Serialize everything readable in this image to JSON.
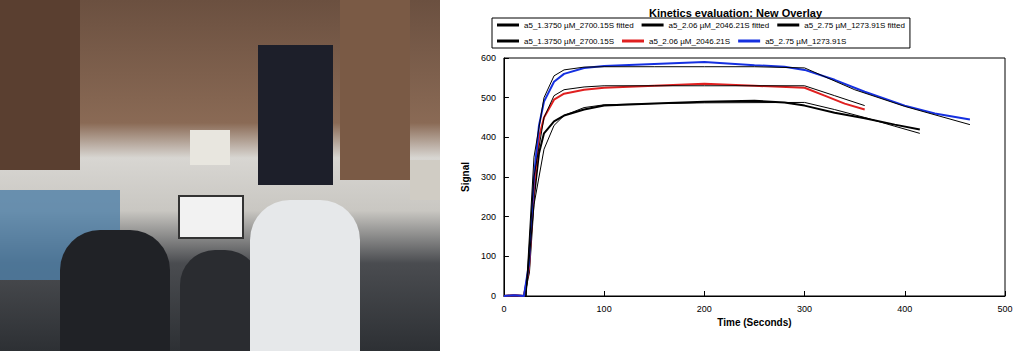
{
  "chart_data": {
    "type": "line",
    "title": "Kinetics evaluation: New Overlay",
    "x_label": "Time (Seconds)",
    "y_label": "Signal",
    "xlim": [
      0,
      500
    ],
    "xticks": [
      0,
      100,
      200,
      300,
      400,
      500
    ],
    "ylim": [
      0,
      600
    ],
    "yticks": [
      0,
      100,
      200,
      300,
      400,
      500,
      600
    ],
    "grid": false,
    "legend": "top",
    "series": [
      {
        "name": "a5_1.3750 µM_2700.15S fitted",
        "color": "#000000",
        "line_style": "thin",
        "x": [
          22,
          30,
          40,
          50,
          60,
          80,
          100,
          150,
          200,
          300,
          330,
          360,
          390,
          415
        ],
        "values": [
          0,
          230,
          370,
          430,
          455,
          475,
          482,
          485,
          487,
          488,
          470,
          450,
          428,
          410
        ]
      },
      {
        "name": "a5_2.06 µM_2046.21S fitted",
        "color": "#000000",
        "line_style": "thin",
        "x": [
          22,
          30,
          40,
          50,
          60,
          80,
          100,
          150,
          200,
          300,
          330,
          360
        ],
        "values": [
          0,
          300,
          450,
          505,
          520,
          527,
          530,
          530,
          530,
          530,
          505,
          480
        ]
      },
      {
        "name": "a5_2.75 µM_1273.91S fitted",
        "color": "#000000",
        "line_style": "thin",
        "x": [
          22,
          30,
          40,
          50,
          60,
          80,
          100,
          150,
          200,
          250,
          300,
          350,
          400,
          465
        ],
        "values": [
          0,
          350,
          500,
          555,
          570,
          577,
          578,
          578,
          578,
          578,
          575,
          520,
          478,
          432
        ]
      },
      {
        "name": "a5_1.3750 µM_2700.15S",
        "color": "#000000",
        "line_style": "thick",
        "x": [
          0,
          10,
          20,
          25,
          30,
          35,
          40,
          50,
          60,
          80,
          100,
          150,
          200,
          250,
          280,
          300,
          330,
          360,
          390,
          415
        ],
        "values": [
          0,
          2,
          0,
          60,
          250,
          360,
          410,
          440,
          455,
          470,
          480,
          485,
          490,
          492,
          488,
          480,
          462,
          448,
          432,
          420
        ]
      },
      {
        "name": "a5_2.06 µM_2046.21S",
        "color": "#e02020",
        "line_style": "thick",
        "x": [
          0,
          10,
          20,
          25,
          30,
          35,
          40,
          50,
          60,
          80,
          100,
          150,
          200,
          250,
          300,
          320,
          340,
          360
        ],
        "values": [
          0,
          2,
          0,
          70,
          280,
          400,
          450,
          495,
          510,
          520,
          525,
          530,
          535,
          530,
          525,
          505,
          485,
          470
        ]
      },
      {
        "name": "a5_2.75 µM_1273.91S",
        "color": "#1530e0",
        "line_style": "thick",
        "x": [
          0,
          10,
          20,
          25,
          30,
          35,
          40,
          50,
          60,
          80,
          100,
          150,
          200,
          250,
          280,
          300,
          330,
          360,
          400,
          430,
          465
        ],
        "values": [
          0,
          2,
          0,
          80,
          300,
          430,
          490,
          540,
          560,
          575,
          580,
          585,
          590,
          582,
          578,
          570,
          545,
          515,
          480,
          460,
          445
        ]
      }
    ]
  }
}
